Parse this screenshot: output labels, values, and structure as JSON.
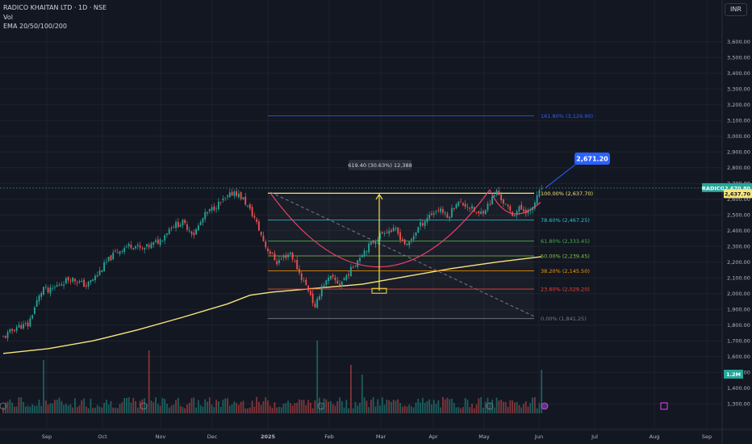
{
  "header": {
    "symbol_line": "RADICO KHAITAN LTD · 1D · NSE",
    "vol_label": "Vol",
    "ema_label": "EMA 20/50/100/200"
  },
  "currency": "INR",
  "colors": {
    "bg": "#131722",
    "up": "#26a69a",
    "down": "#ef5350",
    "ema": "#f7e47b",
    "grid": "#1e222d",
    "cup": "#e9416a",
    "fib_top": "#f7e47b",
    "blue": "#2962ff",
    "yellow": "#f0e442"
  },
  "chart_data": {
    "type": "candlestick",
    "title": "RADICO KHAITAN LTD · 1D · NSE",
    "ylim": [
      1250,
      3660
    ],
    "y_ticks": [
      "3,600.00",
      "3,500.00",
      "3,400.00",
      "3,300.00",
      "3,200.00",
      "3,100.00",
      "3,000.00",
      "2,900.00",
      "2,800.00",
      "2,700.00",
      "2,600.00",
      "2,500.00",
      "2,400.00",
      "2,300.00",
      "2,200.00",
      "2,100.00",
      "2,000.00",
      "1,900.00",
      "1,800.00",
      "1,700.00",
      "1,600.00",
      "1,500.00",
      "1,400.00",
      "1,300.00"
    ],
    "x_ticks": [
      "Sep",
      "Oct",
      "Nov",
      "Dec",
      "2025",
      "Feb",
      "Mar",
      "Apr",
      "May",
      "Jun",
      "Jul",
      "Aug",
      "Sep"
    ],
    "last_price": "2,670.80",
    "symbol_tag": "RADICO",
    "second_price": "2,637.70",
    "callout_price": "2,671.20",
    "volume_badge": "1.2M",
    "measure_label": "619.40 (30.63%) 12,388",
    "fib_levels": [
      {
        "label": "161.80% (3,129.90)",
        "value": 3129.9,
        "color": "#2962ff"
      },
      {
        "label": "100.00% (2,637.70)",
        "value": 2637.7,
        "color": "#f7e47b"
      },
      {
        "label": "78.60% (2,467.25)",
        "value": 2467.25,
        "color": "#26c6da"
      },
      {
        "label": "61.80% (2,333.45)",
        "value": 2333.45,
        "color": "#4caf50"
      },
      {
        "label": "50.00% (2,239.45)",
        "value": 2239.45,
        "color": "#8bc34a"
      },
      {
        "label": "38.20% (2,145.50)",
        "value": 2145.5,
        "color": "#ff9800"
      },
      {
        "label": "23.60% (2,029.20)",
        "value": 2029.2,
        "color": "#f44336"
      },
      {
        "label": "0.00% (1,841.25)",
        "value": 1841.25,
        "color": "#787b86"
      }
    ],
    "ohlc_anchors": [
      [
        0,
        1720
      ],
      [
        6,
        1790
      ],
      [
        11,
        1800
      ],
      [
        15,
        1950
      ],
      [
        18,
        2040
      ],
      [
        20,
        2010
      ],
      [
        25,
        2060
      ],
      [
        30,
        2100
      ],
      [
        33,
        2080
      ],
      [
        37,
        2050
      ],
      [
        42,
        2120
      ],
      [
        46,
        2200
      ],
      [
        50,
        2260
      ],
      [
        55,
        2300
      ],
      [
        58,
        2310
      ],
      [
        62,
        2280
      ],
      [
        66,
        2310
      ],
      [
        70,
        2340
      ],
      [
        75,
        2430
      ],
      [
        80,
        2450
      ],
      [
        85,
        2380
      ],
      [
        90,
        2500
      ],
      [
        95,
        2560
      ],
      [
        100,
        2610
      ],
      [
        103,
        2650
      ],
      [
        107,
        2600
      ],
      [
        112,
        2480
      ],
      [
        117,
        2300
      ],
      [
        122,
        2200
      ],
      [
        128,
        2260
      ],
      [
        133,
        2100
      ],
      [
        137,
        2000
      ],
      [
        139,
        1900
      ],
      [
        142,
        2050
      ],
      [
        146,
        2100
      ],
      [
        150,
        2060
      ],
      [
        155,
        2150
      ],
      [
        160,
        2260
      ],
      [
        165,
        2330
      ],
      [
        170,
        2400
      ],
      [
        175,
        2400
      ],
      [
        180,
        2300
      ],
      [
        185,
        2420
      ],
      [
        190,
        2500
      ],
      [
        195,
        2540
      ],
      [
        198,
        2480
      ],
      [
        202,
        2580
      ],
      [
        207,
        2560
      ],
      [
        212,
        2500
      ],
      [
        216,
        2560
      ],
      [
        220,
        2650
      ],
      [
        223,
        2580
      ],
      [
        227,
        2500
      ],
      [
        230,
        2540
      ],
      [
        235,
        2520
      ],
      [
        240,
        2670
      ]
    ],
    "ema200": [
      [
        0,
        1620
      ],
      [
        20,
        1650
      ],
      [
        40,
        1700
      ],
      [
        60,
        1770
      ],
      [
        80,
        1850
      ],
      [
        100,
        1935
      ],
      [
        110,
        1990
      ],
      [
        120,
        2010
      ],
      [
        140,
        2035
      ],
      [
        160,
        2060
      ],
      [
        180,
        2110
      ],
      [
        200,
        2160
      ],
      [
        220,
        2200
      ],
      [
        240,
        2235
      ]
    ],
    "volume_spikes": [
      [
        18,
        0.55
      ],
      [
        65,
        0.65
      ],
      [
        140,
        0.75
      ],
      [
        155,
        0.5
      ],
      [
        160,
        0.4
      ],
      [
        240,
        0.45
      ]
    ]
  }
}
